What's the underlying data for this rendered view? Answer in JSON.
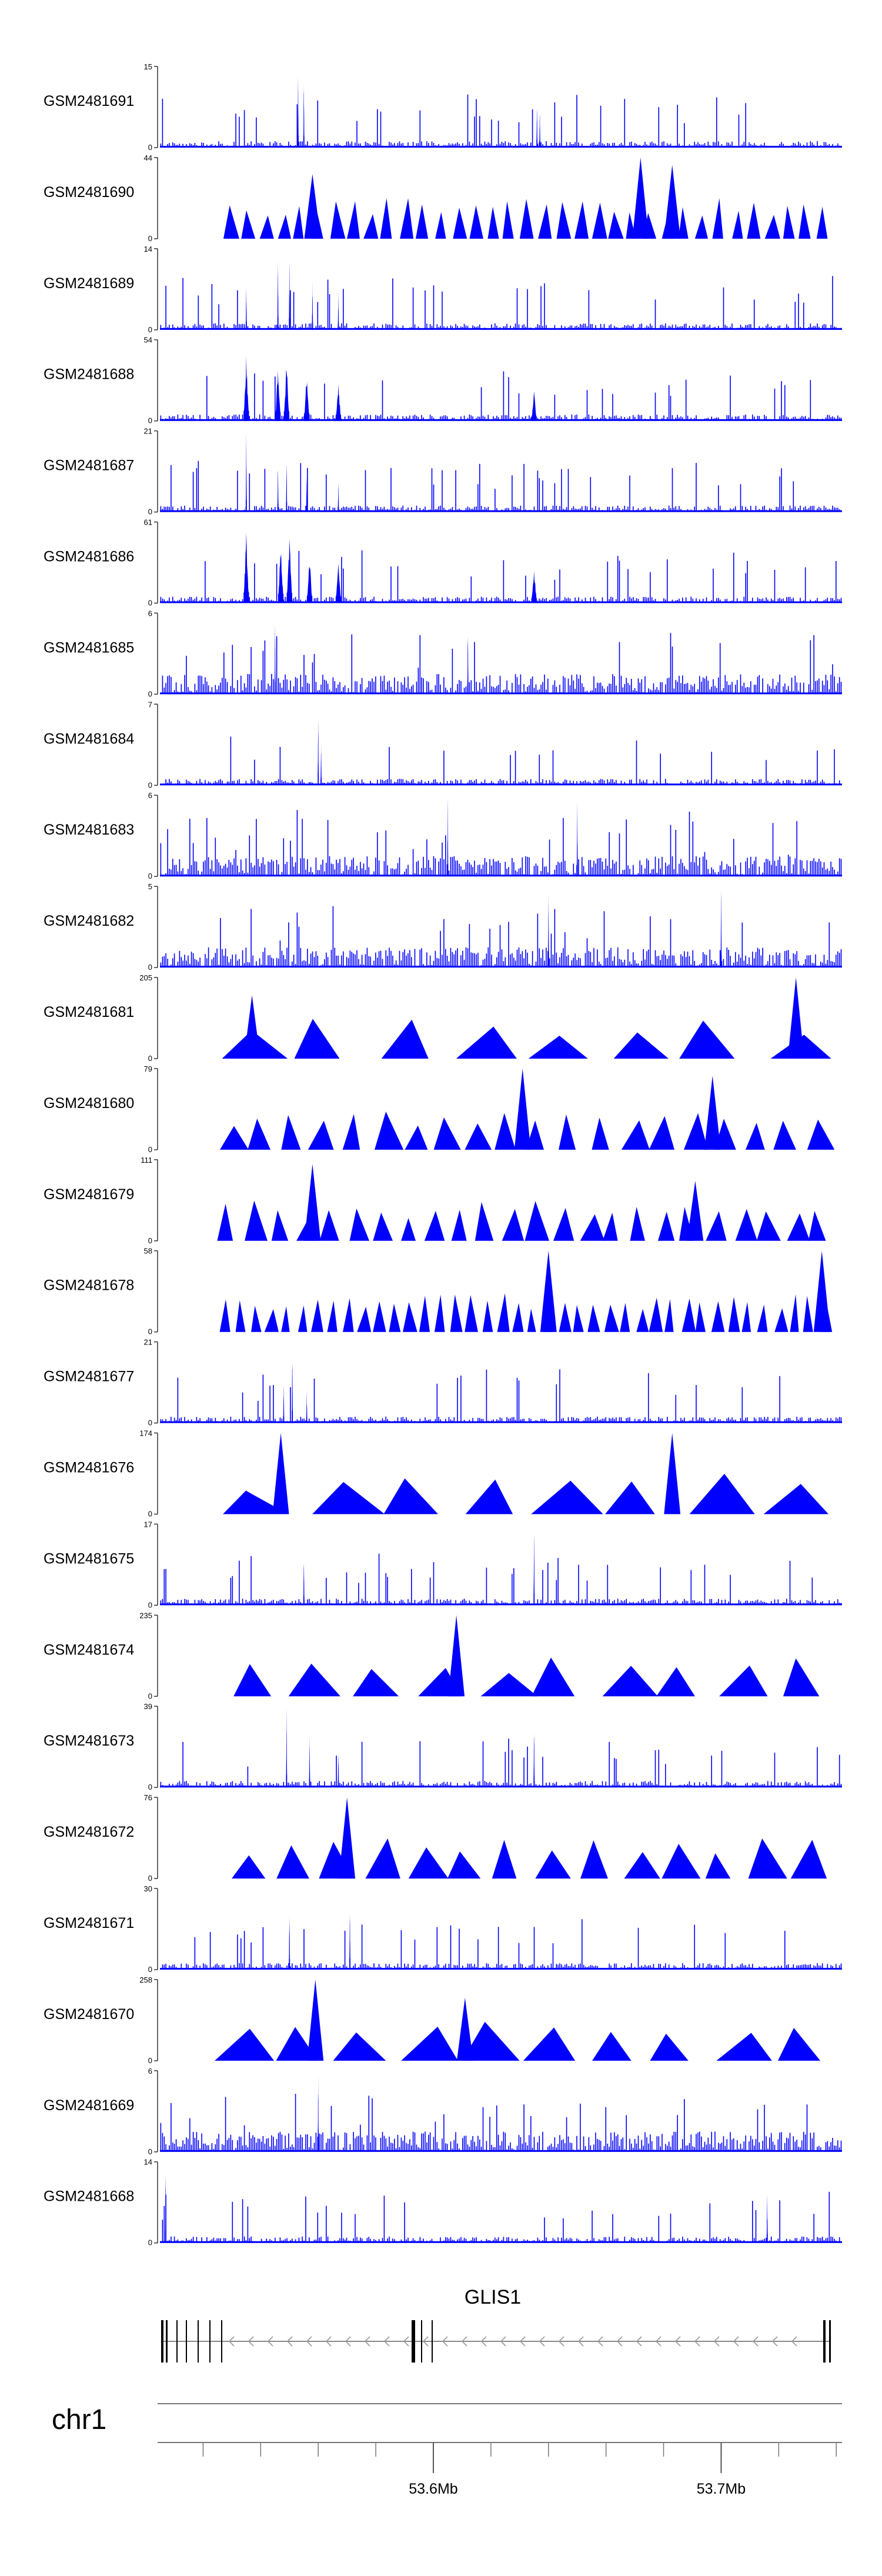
{
  "chart_data": {
    "type": "area",
    "title": "",
    "xlabel": "",
    "ylabel": "",
    "chromosome": "chr1",
    "gene": "GLIS1",
    "x_range_mb": [
      53.505,
      53.742
    ],
    "x_tick_labels": [
      {
        "pos": 53.6,
        "label": "53.6Mb"
      },
      {
        "pos": 53.7,
        "label": "53.7Mb"
      }
    ],
    "color": "#0000ff",
    "tracks": [
      {
        "name": "GSM2481691",
        "ymax": 15,
        "kind": "dense",
        "peaks": [
          [
            53.553,
            15
          ],
          [
            53.555,
            14
          ],
          [
            53.636,
            9
          ],
          [
            53.637,
            8
          ]
        ]
      },
      {
        "name": "GSM2481690",
        "ymax": 44,
        "kind": "sparse",
        "n_tri": 35,
        "peaks": [
          [
            53.672,
            44
          ],
          [
            53.683,
            40
          ],
          [
            53.558,
            35
          ]
        ]
      },
      {
        "name": "GSM2481689",
        "ymax": 14,
        "kind": "dense",
        "peaks": [
          [
            53.535,
            9
          ],
          [
            53.546,
            14
          ],
          [
            53.55,
            13
          ],
          [
            53.558,
            9
          ],
          [
            53.567,
            7
          ]
        ]
      },
      {
        "name": "GSM2481688",
        "ymax": 54,
        "kind": "cluster",
        "peaks": [
          [
            53.535,
            45
          ],
          [
            53.546,
            38
          ],
          [
            53.549,
            42
          ],
          [
            53.556,
            32
          ],
          [
            53.567,
            26
          ],
          [
            53.635,
            20
          ]
        ]
      },
      {
        "name": "GSM2481687",
        "ymax": 21,
        "kind": "dense",
        "peaks": [
          [
            53.535,
            21
          ],
          [
            53.546,
            14
          ],
          [
            53.549,
            16
          ],
          [
            53.556,
            11
          ],
          [
            53.567,
            9
          ]
        ]
      },
      {
        "name": "GSM2481686",
        "ymax": 61,
        "kind": "cluster",
        "peaks": [
          [
            53.535,
            54
          ],
          [
            53.547,
            46
          ],
          [
            53.55,
            52
          ],
          [
            53.557,
            36
          ],
          [
            53.567,
            33
          ],
          [
            53.635,
            26
          ]
        ]
      },
      {
        "name": "GSM2481685",
        "ymax": 6,
        "kind": "noise",
        "peaks": [
          [
            53.545,
            6
          ],
          [
            53.612,
            6
          ]
        ]
      },
      {
        "name": "GSM2481684",
        "ymax": 7,
        "kind": "dense",
        "peaks": [
          [
            53.56,
            7
          ],
          [
            53.561,
            4
          ]
        ]
      },
      {
        "name": "GSM2481683",
        "ymax": 6,
        "kind": "noise",
        "peaks": [
          [
            53.605,
            6
          ],
          [
            53.65,
            6
          ]
        ]
      },
      {
        "name": "GSM2481682",
        "ymax": 5,
        "kind": "noise",
        "peaks": [
          [
            53.64,
            5
          ],
          [
            53.7,
            5
          ]
        ]
      },
      {
        "name": "GSM2481681",
        "ymax": 205,
        "kind": "sparse",
        "n_tri": 8,
        "peaks": [
          [
            53.537,
            160
          ],
          [
            53.726,
            205
          ]
        ]
      },
      {
        "name": "GSM2481680",
        "ymax": 79,
        "kind": "sparse",
        "n_tri": 20,
        "peaks": [
          [
            53.631,
            79
          ],
          [
            53.697,
            72
          ]
        ]
      },
      {
        "name": "GSM2481679",
        "ymax": 111,
        "kind": "sparse",
        "n_tri": 24,
        "peaks": [
          [
            53.558,
            105
          ],
          [
            53.691,
            82
          ]
        ]
      },
      {
        "name": "GSM2481678",
        "ymax": 58,
        "kind": "sparse",
        "n_tri": 40,
        "peaks": [
          [
            53.64,
            58
          ],
          [
            53.735,
            58
          ]
        ]
      },
      {
        "name": "GSM2481677",
        "ymax": 21,
        "kind": "dense",
        "peaks": [
          [
            53.551,
            21
          ],
          [
            53.548,
            11
          ],
          [
            53.556,
            9
          ]
        ]
      },
      {
        "name": "GSM2481676",
        "ymax": 174,
        "kind": "sparse",
        "n_tri": 8,
        "peaks": [
          [
            53.547,
            174
          ],
          [
            53.683,
            174
          ]
        ]
      },
      {
        "name": "GSM2481675",
        "ymax": 17,
        "kind": "dense",
        "peaks": [
          [
            53.635,
            17
          ],
          [
            53.555,
            12
          ]
        ]
      },
      {
        "name": "GSM2481674",
        "ymax": 235,
        "kind": "sparse",
        "n_tri": 10,
        "peaks": [
          [
            53.608,
            235
          ]
        ]
      },
      {
        "name": "GSM2481673",
        "ymax": 39,
        "kind": "dense",
        "peaks": [
          [
            53.549,
            39
          ],
          [
            53.557,
            27
          ],
          [
            53.635,
            34
          ],
          [
            53.567,
            20
          ]
        ]
      },
      {
        "name": "GSM2481672",
        "ymax": 76,
        "kind": "sparse",
        "n_tri": 14,
        "peaks": [
          [
            53.57,
            76
          ]
        ]
      },
      {
        "name": "GSM2481671",
        "ymax": 30,
        "kind": "dense",
        "peaks": [
          [
            53.55,
            26
          ],
          [
            53.571,
            27
          ]
        ]
      },
      {
        "name": "GSM2481670",
        "ymax": 258,
        "kind": "sparse",
        "n_tri": 10,
        "peaks": [
          [
            53.559,
            258
          ],
          [
            53.611,
            200
          ]
        ]
      },
      {
        "name": "GSM2481669",
        "ymax": 6,
        "kind": "noise",
        "peaks": [
          [
            53.56,
            6
          ]
        ]
      },
      {
        "name": "GSM2481668",
        "ymax": 14,
        "kind": "dense",
        "peaks": [
          [
            53.507,
            14
          ],
          [
            53.716,
            10
          ]
        ]
      }
    ]
  }
}
